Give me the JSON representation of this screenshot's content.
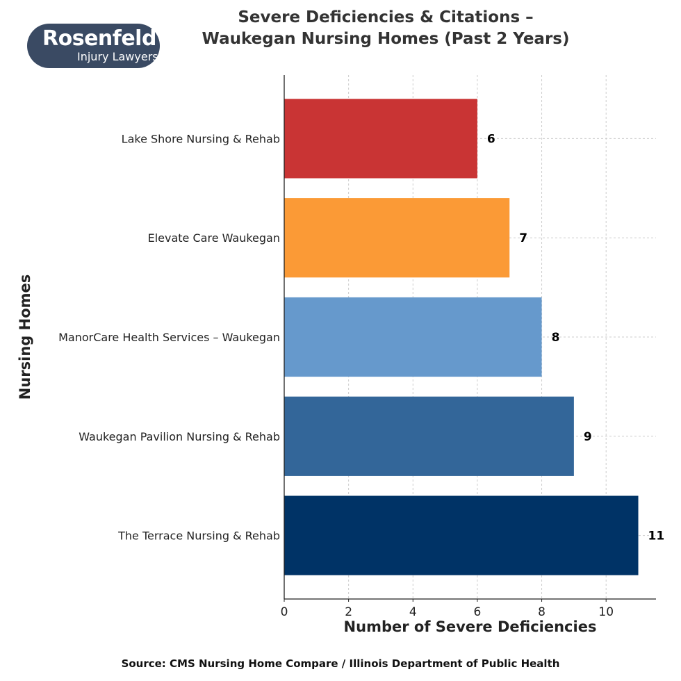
{
  "logo": {
    "line1": "Rosenfeld",
    "line2": "Injury Lawyers"
  },
  "source": "Source: CMS Nursing Home Compare / Illinois Department of Public Health",
  "chart_data": {
    "type": "bar",
    "orientation": "horizontal",
    "title_line1": "Severe Deficiencies & Citations –",
    "title_line2": "Waukegan Nursing Homes (Past 2 Years)",
    "xlabel": "Number of Severe Deficiencies",
    "ylabel": "Nursing Homes",
    "categories": [
      "The Terrace Nursing & Rehab",
      "Waukegan Pavilion Nursing & Rehab",
      "ManorCare Health Services – Waukegan",
      "Elevate Care Waukegan",
      "Lake Shore Nursing & Rehab"
    ],
    "values": [
      11,
      9,
      8,
      7,
      6
    ],
    "colors": [
      "#003366",
      "#336699",
      "#6699cc",
      "#fb9a36",
      "#c93434"
    ],
    "xlim": [
      0,
      11.55
    ],
    "xticks": [
      "0",
      "2",
      "4",
      "6",
      "8",
      "10"
    ],
    "grid": true
  }
}
